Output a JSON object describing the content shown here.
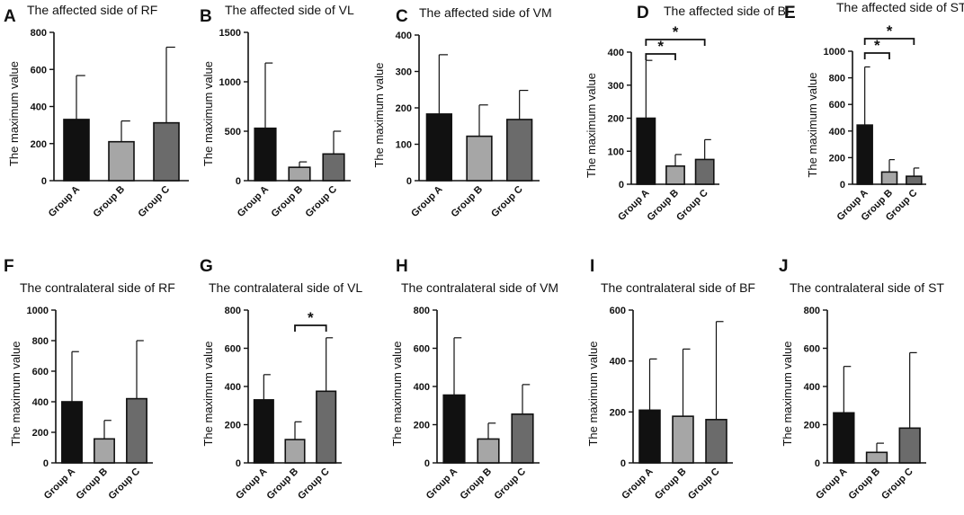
{
  "figure": {
    "description_labels": "Ten bar charts with error bars",
    "colors": {
      "Group A": "#111111",
      "Group B": "#a6a6a6",
      "Group C": "#6b6b6b"
    }
  },
  "chart_data": [
    {
      "panel": "A",
      "type": "bar",
      "title": "The affected side of RF",
      "ylabel": "The maximum  value",
      "categories": [
        "Group A",
        "Group B",
        "Group C"
      ],
      "values": [
        330,
        210,
        312
      ],
      "errors_upper": [
        567,
        322,
        720
      ],
      "ylim": [
        0,
        800
      ],
      "yticks": [
        0,
        200,
        400,
        600,
        800
      ],
      "significance": []
    },
    {
      "panel": "B",
      "type": "bar",
      "title": "The affected side of VL",
      "ylabel": "The maximum  value",
      "categories": [
        "Group A",
        "Group B",
        "Group C"
      ],
      "values": [
        530,
        135,
        270
      ],
      "errors_upper": [
        1190,
        190,
        500
      ],
      "ylim": [
        0,
        1500
      ],
      "yticks": [
        0,
        500,
        1000,
        1500
      ],
      "significance": []
    },
    {
      "panel": "C",
      "type": "bar",
      "title": "The affected side of VM",
      "ylabel": "The maximum  value",
      "categories": [
        "Group A",
        "Group B",
        "Group C"
      ],
      "values": [
        183,
        122,
        168
      ],
      "errors_upper": [
        346,
        208,
        248
      ],
      "ylim": [
        0,
        400
      ],
      "yticks": [
        0,
        100,
        200,
        300,
        400
      ],
      "significance": []
    },
    {
      "panel": "D",
      "type": "bar",
      "title": "The affected side of BF",
      "ylabel": "The maximum  value",
      "categories": [
        "Group A",
        "Group B",
        "Group C"
      ],
      "values": [
        200,
        55,
        75
      ],
      "errors_upper": [
        375,
        90,
        135
      ],
      "ylim": [
        0,
        400
      ],
      "yticks": [
        0,
        100,
        200,
        300,
        400
      ],
      "significance": [
        {
          "from": 0,
          "to": 1,
          "label": "*"
        },
        {
          "from": 0,
          "to": 2,
          "label": "*"
        }
      ]
    },
    {
      "panel": "E",
      "type": "bar",
      "title": "The affected side of ST",
      "ylabel": "The maximum  value",
      "categories": [
        "Group A",
        "Group B",
        "Group C"
      ],
      "values": [
        445,
        92,
        60
      ],
      "errors_upper": [
        882,
        185,
        122
      ],
      "ylim": [
        0,
        1000
      ],
      "yticks": [
        0,
        200,
        400,
        600,
        800,
        1000
      ],
      "significance": [
        {
          "from": 0,
          "to": 1,
          "label": "*"
        },
        {
          "from": 0,
          "to": 2,
          "label": "*"
        }
      ]
    },
    {
      "panel": "F",
      "type": "bar",
      "title": "The contralateral side of RF",
      "ylabel": "The maximum  value",
      "categories": [
        "Group A",
        "Group B",
        "Group C"
      ],
      "values": [
        400,
        157,
        420
      ],
      "errors_upper": [
        728,
        278,
        800
      ],
      "ylim": [
        0,
        1000
      ],
      "yticks": [
        0,
        200,
        400,
        600,
        800,
        1000
      ],
      "significance": []
    },
    {
      "panel": "G",
      "type": "bar",
      "title": "The contralateral side of VL",
      "ylabel": "The maximum  value",
      "categories": [
        "Group A",
        "Group B",
        "Group C"
      ],
      "values": [
        330,
        122,
        375
      ],
      "errors_upper": [
        462,
        215,
        655
      ],
      "ylim": [
        0,
        800
      ],
      "yticks": [
        0,
        200,
        400,
        600,
        800
      ],
      "significance": [
        {
          "from": 1,
          "to": 2,
          "label": "*"
        }
      ]
    },
    {
      "panel": "H",
      "type": "bar",
      "title": "The contralateral side of VM",
      "ylabel": "The maximum  value",
      "categories": [
        "Group A",
        "Group B",
        "Group C"
      ],
      "values": [
        355,
        125,
        255
      ],
      "errors_upper": [
        655,
        208,
        410
      ],
      "ylim": [
        0,
        800
      ],
      "yticks": [
        0,
        200,
        400,
        600,
        800
      ],
      "significance": []
    },
    {
      "panel": "I",
      "type": "bar",
      "title": "The contralateral side of BF",
      "ylabel": "The maximum  value",
      "categories": [
        "Group A",
        "Group B",
        "Group C"
      ],
      "values": [
        207,
        183,
        170
      ],
      "errors_upper": [
        408,
        447,
        555
      ],
      "ylim": [
        0,
        600
      ],
      "yticks": [
        0,
        200,
        400,
        600
      ],
      "significance": []
    },
    {
      "panel": "J",
      "type": "bar",
      "title": "The contralateral side of ST",
      "ylabel": "The maximum  value",
      "categories": [
        "Group A",
        "Group B",
        "Group C"
      ],
      "values": [
        262,
        55,
        182
      ],
      "errors_upper": [
        505,
        103,
        577
      ],
      "ylim": [
        0,
        800
      ],
      "yticks": [
        0,
        200,
        400,
        600,
        800
      ],
      "significance": []
    }
  ]
}
